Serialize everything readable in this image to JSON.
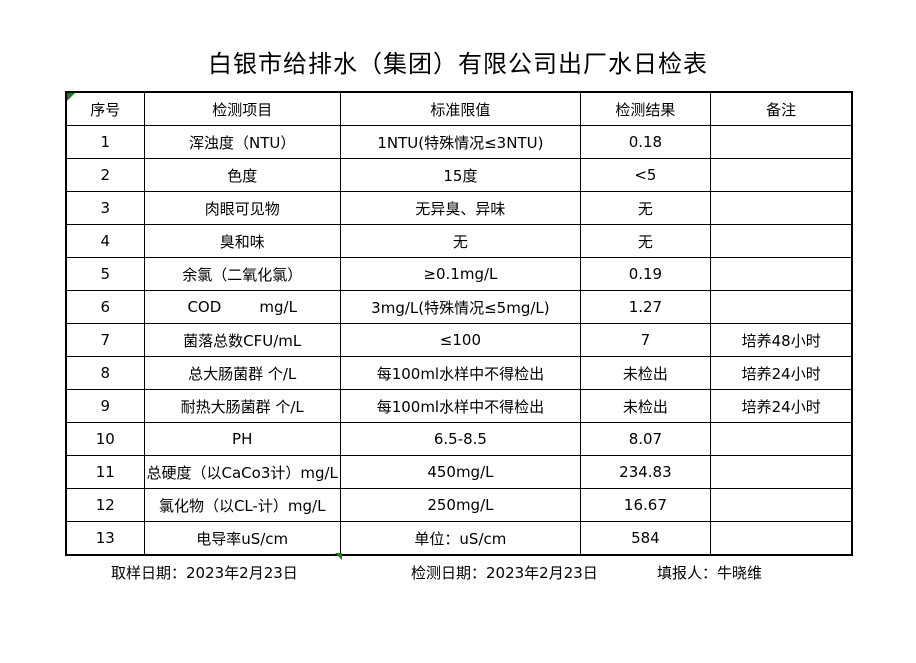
{
  "title": "白银市给排水（集团）有限公司出厂水日检表",
  "table": {
    "headers": {
      "no": "序号",
      "item": "检测项目",
      "standard": "标准限值",
      "result": "检测结果",
      "remark": "备注"
    },
    "rows": [
      {
        "no": "1",
        "item": "浑浊度（NTU）",
        "standard": "1NTU(特殊情况≤3NTU)",
        "result": "0.18",
        "remark": ""
      },
      {
        "no": "2",
        "item": "色度",
        "standard": "15度",
        "result": "<5",
        "remark": ""
      },
      {
        "no": "3",
        "item": "肉眼可见物",
        "standard": "无异臭、异味",
        "result": "无",
        "remark": ""
      },
      {
        "no": "4",
        "item": "臭和味",
        "standard": "无",
        "result": "无",
        "remark": ""
      },
      {
        "no": "5",
        "item": "余氯（二氧化氯）",
        "standard": "≥0.1mg/L",
        "result": "0.19",
        "remark": ""
      },
      {
        "no": "6",
        "item": "COD        mg/L",
        "standard": "3mg/L(特殊情况≤5mg/L)",
        "result": "1.27",
        "remark": ""
      },
      {
        "no": "7",
        "item": "菌落总数CFU/mL",
        "standard": "≤100",
        "result": "7",
        "remark": "培养48小时"
      },
      {
        "no": "8",
        "item": "总大肠菌群 个/L",
        "standard": "每100ml水样中不得检出",
        "result": "未检出",
        "remark": "培养24小时"
      },
      {
        "no": "9",
        "item": "耐热大肠菌群 个/L",
        "standard": "每100ml水样中不得检出",
        "result": "未检出",
        "remark": "培养24小时"
      },
      {
        "no": "10",
        "item": "PH",
        "standard": "6.5-8.5",
        "result": "8.07",
        "remark": ""
      },
      {
        "no": "11",
        "item": "总硬度（以CaCo3计）mg/L",
        "standard": "450mg/L",
        "result": "234.83",
        "remark": ""
      },
      {
        "no": "12",
        "item": "氯化物（以CL-计）mg/L",
        "standard": "250mg/L",
        "result": "16.67",
        "remark": ""
      },
      {
        "no": "13",
        "item": "电导率uS/cm",
        "standard": "单位：uS/cm",
        "result": "584",
        "remark": ""
      }
    ]
  },
  "footer": {
    "sampling_date": "取样日期：2023年2月23日",
    "test_date": "检测日期：2023年2月23日",
    "reporter": "填报人：牛晓维"
  },
  "colors": {
    "background": "#ffffff",
    "border": "#000000",
    "text": "#000000",
    "marker_green": "#217a21"
  }
}
